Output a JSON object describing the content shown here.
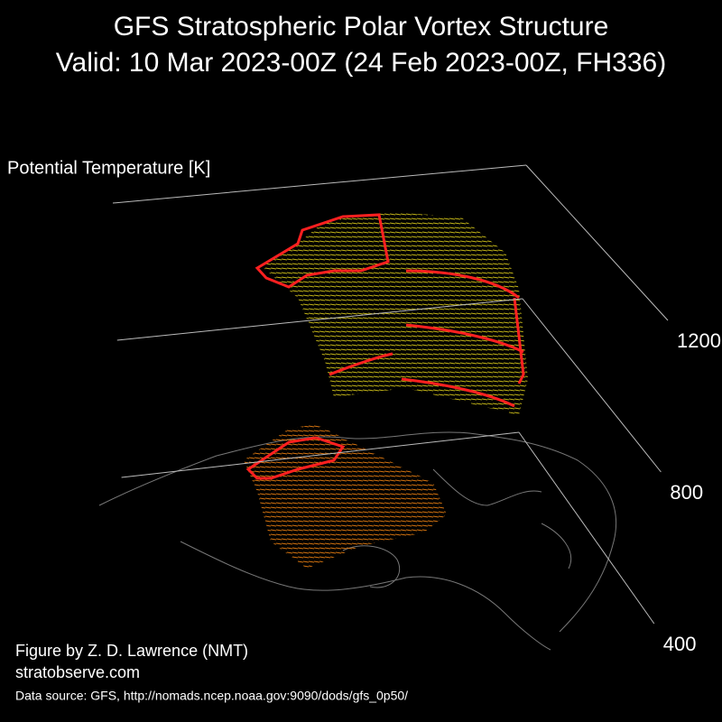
{
  "figure": {
    "title": "GFS Stratospheric Polar Vortex Structure",
    "subtitle": "Valid: 10 Mar 2023-00Z  (24 Feb 2023-00Z, FH336)",
    "axis_label": "Potential Temperature [K]",
    "zticks": [
      400,
      800,
      1200
    ],
    "credit": "Figure by Z. D. Lawrence (NMT)",
    "website": "stratobserve.com",
    "source": "Data source: GFS, http://nomads.ncep.noaa.gov:9090/dods/gfs_0p50/"
  }
}
